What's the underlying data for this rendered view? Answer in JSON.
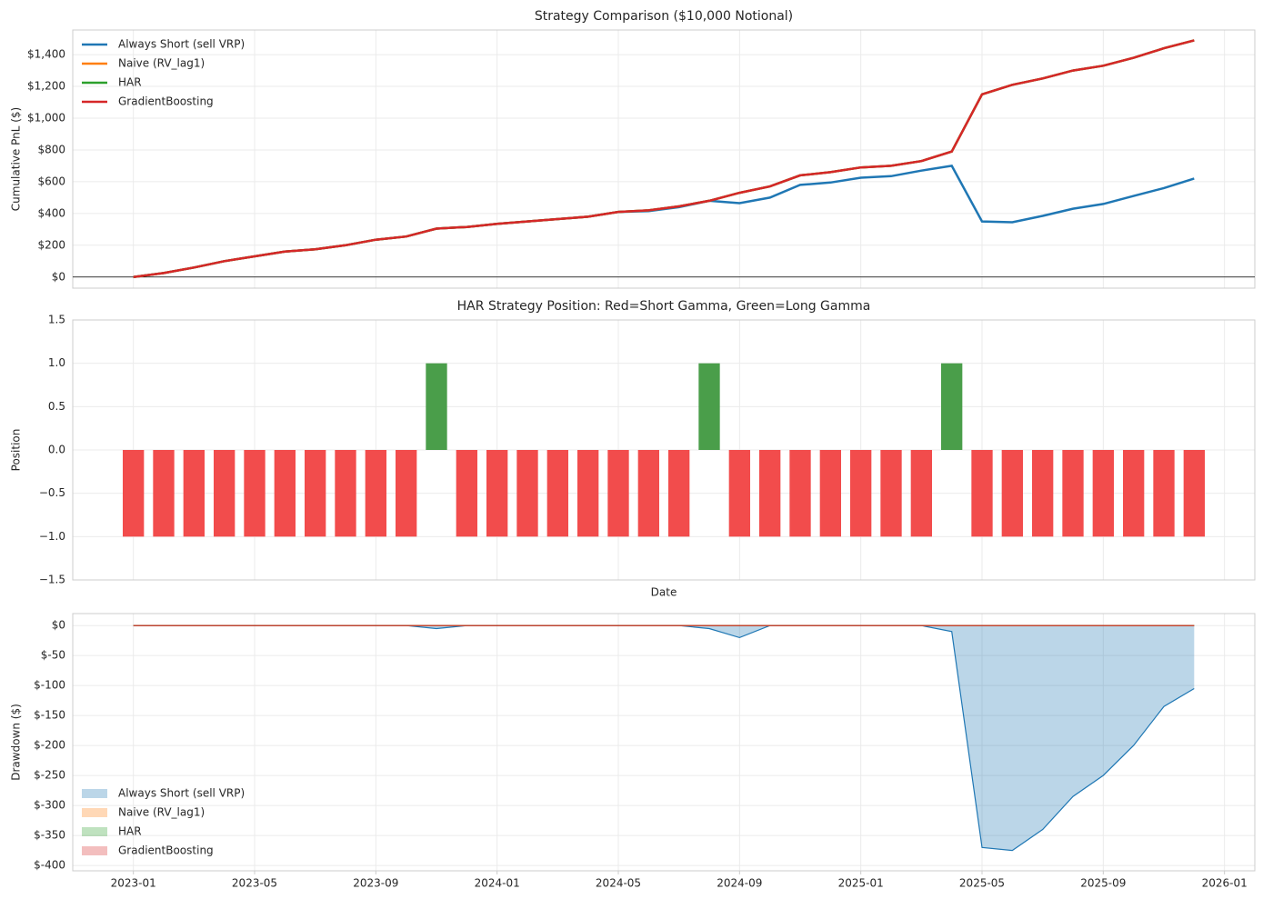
{
  "chart_data": [
    {
      "type": "line",
      "title": "Strategy Comparison ($10,000 Notional)",
      "ylabel": "Cumulative PnL ($)",
      "x": [
        "2023-01",
        "2023-02",
        "2023-03",
        "2023-04",
        "2023-05",
        "2023-06",
        "2023-07",
        "2023-08",
        "2023-09",
        "2023-10",
        "2023-11",
        "2023-12",
        "2024-01",
        "2024-02",
        "2024-03",
        "2024-04",
        "2024-05",
        "2024-06",
        "2024-07",
        "2024-08",
        "2024-09",
        "2024-10",
        "2024-11",
        "2024-12",
        "2025-01",
        "2025-02",
        "2025-03",
        "2025-04",
        "2025-05",
        "2025-06",
        "2025-07",
        "2025-08",
        "2025-09",
        "2025-10",
        "2025-11",
        "2025-12"
      ],
      "series": [
        {
          "name": "Always Short (sell VRP)",
          "color": "#1f77b4",
          "values": [
            0,
            25,
            60,
            100,
            130,
            160,
            175,
            200,
            235,
            255,
            305,
            315,
            335,
            350,
            365,
            380,
            410,
            415,
            440,
            480,
            465,
            500,
            580,
            595,
            625,
            635,
            670,
            700,
            350,
            345,
            385,
            430,
            460,
            510,
            560,
            620
          ]
        },
        {
          "name": "Naive (RV_lag1)",
          "color": "#ff7f0e",
          "values": [
            0,
            25,
            60,
            100,
            130,
            160,
            175,
            200,
            235,
            255,
            305,
            315,
            335,
            350,
            365,
            380,
            410,
            420,
            445,
            480,
            530,
            570,
            640,
            660,
            690,
            700,
            730,
            790,
            1150,
            1210,
            1250,
            1300,
            1330,
            1380,
            1440,
            1490
          ]
        },
        {
          "name": "HAR",
          "color": "#2ca02c",
          "values": [
            0,
            25,
            60,
            100,
            130,
            160,
            175,
            200,
            235,
            255,
            305,
            315,
            335,
            350,
            365,
            380,
            410,
            420,
            445,
            480,
            530,
            570,
            640,
            660,
            690,
            700,
            730,
            790,
            1150,
            1210,
            1250,
            1300,
            1330,
            1380,
            1440,
            1490
          ]
        },
        {
          "name": "GradientBoosting",
          "color": "#d62728",
          "values": [
            0,
            25,
            60,
            100,
            130,
            160,
            175,
            200,
            235,
            255,
            305,
            315,
            335,
            350,
            365,
            380,
            410,
            420,
            445,
            480,
            530,
            570,
            640,
            660,
            690,
            700,
            730,
            790,
            1150,
            1210,
            1250,
            1300,
            1330,
            1380,
            1440,
            1490
          ]
        }
      ],
      "xlim": [
        "2022-11",
        "2026-02"
      ],
      "ylim": [
        -70,
        1555
      ],
      "yticks": [
        {
          "value": 0,
          "label": "$0"
        },
        {
          "value": 200,
          "label": "$200"
        },
        {
          "value": 400,
          "label": "$400"
        },
        {
          "value": 600,
          "label": "$600"
        },
        {
          "value": 800,
          "label": "$800"
        },
        {
          "value": 1000,
          "label": "$1,000"
        },
        {
          "value": 1200,
          "label": "$1,200"
        },
        {
          "value": 1400,
          "label": "$1,400"
        }
      ],
      "grid": true,
      "zero_line": true,
      "legend": "upper-left"
    },
    {
      "type": "bar",
      "title": "HAR Strategy Position: Red=Short Gamma, Green=Long Gamma",
      "ylabel": "Position",
      "xlabel": "Date",
      "x": [
        "2023-01",
        "2023-02",
        "2023-03",
        "2023-04",
        "2023-05",
        "2023-06",
        "2023-07",
        "2023-08",
        "2023-09",
        "2023-10",
        "2023-11",
        "2023-12",
        "2024-01",
        "2024-02",
        "2024-03",
        "2024-04",
        "2024-05",
        "2024-06",
        "2024-07",
        "2024-08",
        "2024-09",
        "2024-10",
        "2024-11",
        "2024-12",
        "2025-01",
        "2025-02",
        "2025-03",
        "2025-04",
        "2025-05",
        "2025-06",
        "2025-07",
        "2025-08",
        "2025-09",
        "2025-10",
        "2025-11",
        "2025-12"
      ],
      "values": [
        -1,
        -1,
        -1,
        -1,
        -1,
        -1,
        -1,
        -1,
        -1,
        -1,
        1,
        -1,
        -1,
        -1,
        -1,
        -1,
        -1,
        -1,
        -1,
        1,
        -1,
        -1,
        -1,
        -1,
        -1,
        -1,
        -1,
        1,
        -1,
        -1,
        -1,
        -1,
        -1,
        -1,
        -1,
        -1
      ],
      "positive_color": "#4a9e4a",
      "negative_color": "#f24c4c",
      "xlim": [
        "2022-11",
        "2026-02"
      ],
      "ylim": [
        -1.5,
        1.5
      ],
      "yticks": [
        {
          "value": -1.5,
          "label": "−1.5"
        },
        {
          "value": -1,
          "label": "−1.0"
        },
        {
          "value": -0.5,
          "label": "−0.5"
        },
        {
          "value": 0,
          "label": "0.0"
        },
        0.5,
        {
          "value": 1,
          "label": "1.0"
        },
        1.5
      ],
      "grid": true
    },
    {
      "type": "area",
      "ylabel": "Drawdown ($)",
      "x": [
        "2023-01",
        "2023-02",
        "2023-03",
        "2023-04",
        "2023-05",
        "2023-06",
        "2023-07",
        "2023-08",
        "2023-09",
        "2023-10",
        "2023-11",
        "2023-12",
        "2024-01",
        "2024-02",
        "2024-03",
        "2024-04",
        "2024-05",
        "2024-06",
        "2024-07",
        "2024-08",
        "2024-09",
        "2024-10",
        "2024-11",
        "2024-12",
        "2025-01",
        "2025-02",
        "2025-03",
        "2025-04",
        "2025-05",
        "2025-06",
        "2025-07",
        "2025-08",
        "2025-09",
        "2025-10",
        "2025-11",
        "2025-12"
      ],
      "series": [
        {
          "name": "Always Short (sell VRP)",
          "color": "#1f77b4",
          "values": [
            0,
            0,
            0,
            0,
            0,
            0,
            0,
            0,
            0,
            0,
            -5,
            0,
            0,
            0,
            0,
            0,
            0,
            0,
            0,
            -5,
            -20,
            0,
            0,
            0,
            0,
            0,
            0,
            -10,
            -370,
            -375,
            -340,
            -285,
            -250,
            -200,
            -135,
            -105
          ]
        },
        {
          "name": "Naive (RV_lag1)",
          "color": "#ff7f0e",
          "values": [
            0,
            0,
            0,
            0,
            0,
            0,
            0,
            0,
            0,
            0,
            0,
            0,
            0,
            0,
            0,
            0,
            0,
            0,
            0,
            0,
            0,
            0,
            0,
            0,
            0,
            0,
            0,
            0,
            0,
            0,
            0,
            0,
            0,
            0,
            0,
            0
          ]
        },
        {
          "name": "HAR",
          "color": "#2ca02c",
          "values": [
            0,
            0,
            0,
            0,
            0,
            0,
            0,
            0,
            0,
            0,
            0,
            0,
            0,
            0,
            0,
            0,
            0,
            0,
            0,
            0,
            0,
            0,
            0,
            0,
            0,
            0,
            0,
            0,
            0,
            0,
            0,
            0,
            0,
            0,
            0,
            0
          ]
        },
        {
          "name": "GradientBoosting",
          "color": "#d62728",
          "values": [
            0,
            0,
            0,
            0,
            0,
            0,
            0,
            0,
            0,
            0,
            0,
            0,
            0,
            0,
            0,
            0,
            0,
            0,
            0,
            0,
            0,
            0,
            0,
            0,
            0,
            0,
            0,
            0,
            0,
            0,
            0,
            0,
            0,
            0,
            0,
            0
          ]
        }
      ],
      "xlim": [
        "2022-11",
        "2026-02"
      ],
      "ylim": [
        -409,
        20
      ],
      "xticks": [
        "2023-01",
        "2023-05",
        "2023-09",
        "2024-01",
        "2024-05",
        "2024-09",
        "2025-01",
        "2025-05",
        "2025-09",
        "2026-01"
      ],
      "yticks": [
        {
          "value": -400,
          "label": "$-400"
        },
        {
          "value": -350,
          "label": "$-350"
        },
        {
          "value": -300,
          "label": "$-300"
        },
        {
          "value": -250,
          "label": "$-250"
        },
        {
          "value": -200,
          "label": "$-200"
        },
        {
          "value": -150,
          "label": "$-150"
        },
        {
          "value": -100,
          "label": "$-100"
        },
        {
          "value": -50,
          "label": "$-50"
        },
        {
          "value": 0,
          "label": "$0"
        }
      ],
      "grid": true,
      "legend": "lower-left"
    }
  ]
}
